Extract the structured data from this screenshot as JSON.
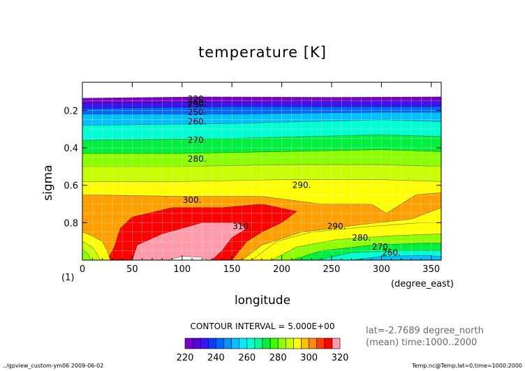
{
  "chart_data": {
    "type": "heatmap",
    "title": "temperature [K]",
    "xlabel": "longitude",
    "ylabel": "sigma",
    "x_units": "(degree_east)",
    "panel_label": "(1)",
    "xlim": [
      0,
      360
    ],
    "ylim": [
      0.05,
      1.0
    ],
    "y_inverted": true,
    "x_ticks": [
      0,
      50,
      100,
      150,
      200,
      250,
      300,
      350
    ],
    "y_ticks": [
      0.2,
      0.4,
      0.6,
      0.8
    ],
    "grid": true,
    "contour_interval_text": "CONTOUR INTERVAL = 5.000E+00",
    "contour_labels": [
      {
        "text": "220",
        "lon": 115,
        "sigma": 0.14
      },
      {
        "text": "230",
        "lon": 115,
        "sigma": 0.17
      },
      {
        "text": "240",
        "lon": 115,
        "sigma": 0.16
      },
      {
        "text": "250",
        "lon": 115,
        "sigma": 0.21
      },
      {
        "text": "260",
        "lon": 115,
        "sigma": 0.26
      },
      {
        "text": "270",
        "lon": 115,
        "sigma": 0.36
      },
      {
        "text": "280",
        "lon": 115,
        "sigma": 0.46
      },
      {
        "text": "290",
        "lon": 220,
        "sigma": 0.6
      },
      {
        "text": "300",
        "lon": 110,
        "sigma": 0.68
      },
      {
        "text": "310",
        "lon": 160,
        "sigma": 0.82
      },
      {
        "text": "290",
        "lon": 255,
        "sigma": 0.82
      },
      {
        "text": "280",
        "lon": 280,
        "sigma": 0.88
      },
      {
        "text": "270",
        "lon": 300,
        "sigma": 0.93
      },
      {
        "text": "260",
        "lon": 310,
        "sigma": 0.96
      }
    ],
    "colorbar": {
      "levels": [
        220,
        225,
        230,
        235,
        240,
        245,
        250,
        255,
        260,
        265,
        270,
        275,
        280,
        285,
        290,
        295,
        300,
        305,
        310,
        315,
        320
      ],
      "tick_labels": [
        "220",
        "240",
        "260",
        "280",
        "300",
        "320"
      ],
      "colors": [
        "#7a00c8",
        "#5a00dc",
        "#3d14f0",
        "#0a3cff",
        "#0068ff",
        "#0094ff",
        "#00c0ff",
        "#00ecff",
        "#00ffd2",
        "#00ff8c",
        "#00f040",
        "#3cff00",
        "#8cff00",
        "#c8ff00",
        "#ffff00",
        "#ffc000",
        "#ff8c00",
        "#ff3c00",
        "#ff0000",
        "#ff9aa8"
      ]
    },
    "field_colors": {
      "t220": "#7a00c8",
      "t230": "#3d14f0",
      "t240": "#0068ff",
      "t250": "#00c0ff",
      "t260": "#00ffd2",
      "t270": "#00f040",
      "t280": "#8cff00",
      "t285": "#c8ff00",
      "t290": "#ffff00",
      "t295": "#ffa000",
      "t300": "#ff0000",
      "t310": "#ff9aa8",
      "t315": "#ffffff"
    }
  },
  "info": {
    "lat_text": "lat=-2.7689 degree_north",
    "time_text": "(mean) time:1000..2000"
  },
  "footer": {
    "left": "../gpview_custom-ym06  2009-06-02",
    "right": "Temp.nc@Temp,lat=0,time=1000:2000"
  }
}
